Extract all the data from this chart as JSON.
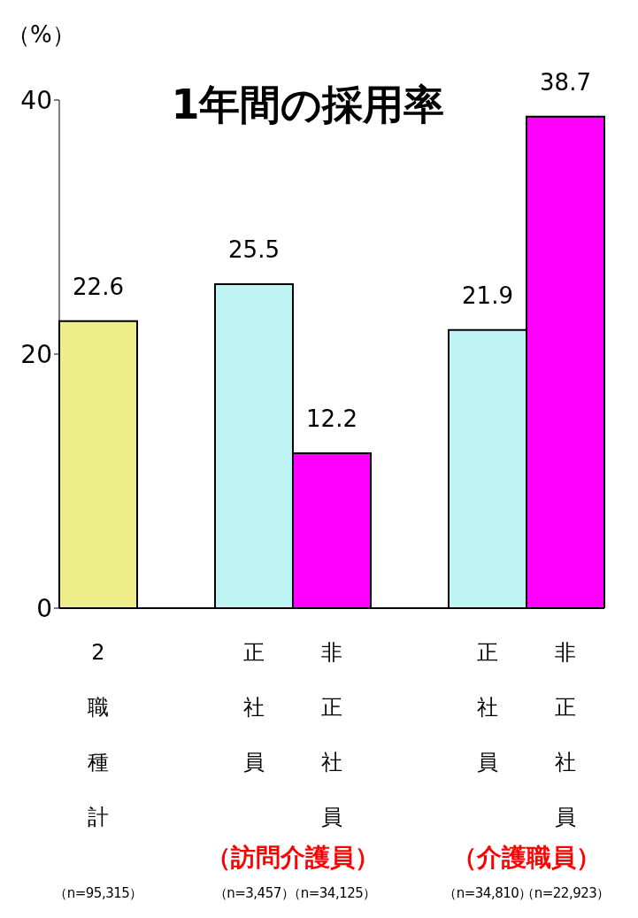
{
  "chart_data": {
    "type": "bar",
    "title": "1年間の採用率",
    "ylabel": "（%）",
    "categories": [
      "2職種計",
      null,
      "正社員",
      "非正社員",
      null,
      "正社員",
      "非正社員"
    ],
    "values": [
      22.6,
      null,
      25.5,
      12.2,
      null,
      21.9,
      38.7
    ],
    "colors": [
      "#eeee88",
      "#cccccc",
      "#bff4f4",
      "#ff00ff",
      "#cccccc",
      "#bff4f4",
      "#ff00ff"
    ],
    "ylim": [
      0,
      40
    ],
    "yticks": [
      0,
      20,
      40
    ],
    "grid": false,
    "legend": false,
    "data_labels": true,
    "annotations": [
      "（訪問介護員）",
      "（介護職員）",
      "（n=95,315）",
      "（n=3,457）",
      "（n=34,125）",
      "（n=34,810）",
      "（n=22,923）"
    ]
  }
}
